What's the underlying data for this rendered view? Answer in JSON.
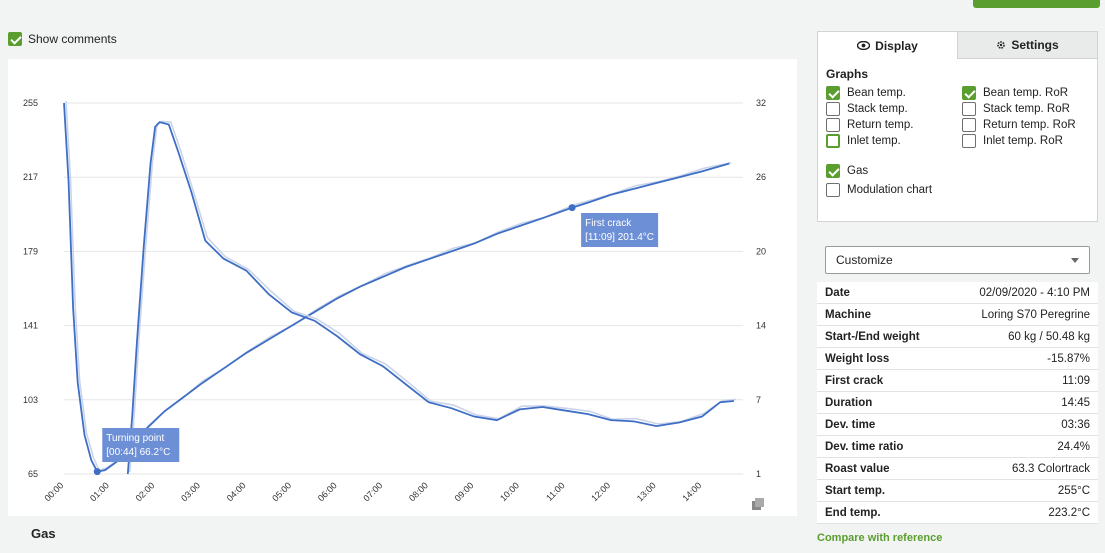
{
  "show_comments": {
    "label": "Show comments",
    "checked": true
  },
  "chart": {
    "left_axis_ticks": [
      "255",
      "217",
      "179",
      "141",
      "103",
      "65"
    ],
    "right_axis_ticks": [
      "32",
      "26",
      "20",
      "14",
      "7",
      "1"
    ],
    "x_ticks": [
      "00:00",
      "01:00",
      "02:00",
      "03:00",
      "04:00",
      "05:00",
      "06:00",
      "07:00",
      "08:00",
      "09:00",
      "10:00",
      "11:00",
      "12:00",
      "13:00",
      "14:00"
    ],
    "annotations": [
      {
        "title": "Turning point",
        "value": "[00:44] 66.2°C"
      },
      {
        "title": "First crack",
        "value": "[11:09] 201.4°C"
      }
    ],
    "colors": {
      "main": "#3f6ec5",
      "reference": "#c9d4ea",
      "annotation": "#6d8fd6"
    }
  },
  "chart_data": {
    "type": "line",
    "x_unit": "minutes",
    "xlim": [
      0,
      14.9
    ],
    "ylim_left": [
      65,
      255
    ],
    "ylim_right": [
      1,
      32
    ],
    "series": [
      {
        "axis": "left",
        "points": [
          [
            0,
            255
          ],
          [
            0.1,
            215
          ],
          [
            0.2,
            150
          ],
          [
            0.3,
            112
          ],
          [
            0.45,
            85
          ],
          [
            0.6,
            72
          ],
          [
            0.73,
            66.2
          ],
          [
            0.9,
            67
          ],
          [
            1.2,
            72
          ],
          [
            1.5,
            80
          ],
          [
            1.8,
            88
          ],
          [
            2.2,
            97
          ],
          [
            2.6,
            104
          ],
          [
            3,
            111
          ],
          [
            3.5,
            119
          ],
          [
            4,
            127
          ],
          [
            4.5,
            134
          ],
          [
            5,
            141
          ],
          [
            5.5,
            148
          ],
          [
            6,
            155
          ],
          [
            6.5,
            161
          ],
          [
            7,
            166
          ],
          [
            7.5,
            171
          ],
          [
            8,
            175
          ],
          [
            8.5,
            179
          ],
          [
            9,
            183
          ],
          [
            9.5,
            188
          ],
          [
            10,
            192
          ],
          [
            10.5,
            196
          ],
          [
            11.15,
            201.4
          ],
          [
            11.5,
            204
          ],
          [
            12,
            208
          ],
          [
            12.5,
            211
          ],
          [
            13,
            214
          ],
          [
            13.5,
            217
          ],
          [
            14,
            220
          ],
          [
            14.6,
            224
          ]
        ]
      },
      {
        "axis": "right",
        "points": [
          [
            1.4,
            1
          ],
          [
            1.5,
            6
          ],
          [
            1.6,
            12
          ],
          [
            1.75,
            20
          ],
          [
            1.9,
            27
          ],
          [
            2,
            30
          ],
          [
            2.1,
            30.4
          ],
          [
            2.3,
            30.2
          ],
          [
            2.5,
            28
          ],
          [
            2.8,
            24.5
          ],
          [
            3.1,
            20.5
          ],
          [
            3.5,
            19
          ],
          [
            4,
            18
          ],
          [
            4.5,
            16
          ],
          [
            5,
            14.5
          ],
          [
            5.5,
            13.8
          ],
          [
            6,
            12.5
          ],
          [
            6.5,
            11
          ],
          [
            7,
            10
          ],
          [
            7.5,
            8.5
          ],
          [
            8,
            7
          ],
          [
            8.5,
            6.5
          ],
          [
            9,
            5.8
          ],
          [
            9.5,
            5.5
          ],
          [
            10,
            6.4
          ],
          [
            10.5,
            6.6
          ],
          [
            11,
            6.3
          ],
          [
            11.5,
            6
          ],
          [
            12,
            5.5
          ],
          [
            12.5,
            5.4
          ],
          [
            13,
            5
          ],
          [
            13.5,
            5.3
          ],
          [
            14,
            5.8
          ],
          [
            14.4,
            7
          ],
          [
            14.7,
            7.1
          ]
        ]
      }
    ]
  },
  "gas_title": "Gas",
  "panel": {
    "tabs": [
      {
        "label": "Display",
        "icon": "eye-icon",
        "active": true
      },
      {
        "label": "Settings",
        "icon": "gear-icon",
        "active": false
      }
    ],
    "graphs_title": "Graphs",
    "graphs": [
      {
        "label": "Bean temp.",
        "checked": true
      },
      {
        "label": "Bean temp. RoR",
        "checked": true
      },
      {
        "label": "Stack temp.",
        "checked": false
      },
      {
        "label": "Stack temp. RoR",
        "checked": false
      },
      {
        "label": "Return temp.",
        "checked": false
      },
      {
        "label": "Return temp. RoR",
        "checked": false
      },
      {
        "label": "Inlet temp.",
        "checked": false,
        "focused": true
      },
      {
        "label": "Inlet temp. RoR",
        "checked": false
      }
    ],
    "extras": [
      {
        "label": "Gas",
        "checked": true
      },
      {
        "label": "Modulation chart",
        "checked": false
      }
    ]
  },
  "customize": {
    "label": "Customize"
  },
  "info": [
    {
      "key": "Date",
      "value": "02/09/2020 - 4:10 PM"
    },
    {
      "key": "Machine",
      "value": "Loring S70 Peregrine"
    },
    {
      "key": "Start-/End weight",
      "value": "60 kg / 50.48 kg"
    },
    {
      "key": "Weight loss",
      "value": "-15.87%"
    },
    {
      "key": "First crack",
      "value": "11:09"
    },
    {
      "key": "Duration",
      "value": "14:45"
    },
    {
      "key": "Dev. time",
      "value": "03:36"
    },
    {
      "key": "Dev. time ratio",
      "value": "24.4%"
    },
    {
      "key": "Roast value",
      "value": "63.3 Colortrack"
    },
    {
      "key": "Start temp.",
      "value": "255°C"
    },
    {
      "key": "End temp.",
      "value": "223.2°C"
    }
  ],
  "compare_link": "Compare with reference",
  "accent_color": "#5a9e2f"
}
